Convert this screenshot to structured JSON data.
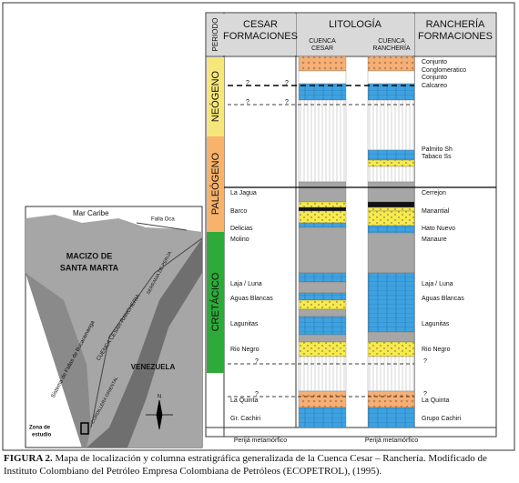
{
  "map": {
    "labels": [
      "Mar Caribe",
      "Falla Oca",
      "MACIZO DE",
      "SANTA MARTA",
      "CUENCA CESAR-RANCHERIA",
      "Sistema de Fallas de Bucaramanga",
      "SERRANIA DE PERIJA",
      "CORDILLERA ORIENTAL",
      "VENEZUELA",
      "N",
      "Zona de",
      "estudio"
    ]
  },
  "column": {
    "header": {
      "periodo": "PERIODO",
      "cesar": [
        "CESAR",
        "FORMACIONES"
      ],
      "litologia": "LITOLOGÍA",
      "cuenca_cesar": [
        "CUENCA",
        "CESAR"
      ],
      "cuenca_rancheria": [
        "CUENCA",
        "RANCHERÍA"
      ],
      "rancheria": [
        "RANCHERÍA",
        "FORMACIONES"
      ]
    },
    "periods": [
      "NEÓGENO",
      "PALEÓGENO",
      "CRETÁCICO"
    ],
    "cesar_formations": [
      "La Jagua",
      "Barco",
      "Delicias",
      "Molino",
      "Laja / Luna",
      "Aguas Blancas",
      "Lagunitas",
      "Rio Negro",
      "La Quinta",
      "Gr. Cachiri"
    ],
    "rancheria_formations": [
      "Conjunto",
      "Conglomeratico",
      "Conjunto",
      "Calcareo",
      "Palmito Sh",
      "Tabaco Ss",
      "Cerrejon",
      "Manantial",
      "Hato Nuevo",
      "Manaure",
      "Laja / Luna",
      "Aguas Blancas",
      "Lagunitas",
      "Rio Negro",
      "La Quinta",
      "Grupo Cachiri"
    ],
    "unknown": "?",
    "basement": [
      "Perijá metamórfico",
      "Perijá metamórfico"
    ]
  },
  "caption": {
    "label": "FIGURA 2.",
    "text": "Mapa de localización y columna estratigráfica generalizada de la Cuenca Cesar – Ranchería. Modificado de Instituto Colombiano del Petróleo Empresa Colombiana de Petróleos (ECOPETROL), (1995)."
  }
}
